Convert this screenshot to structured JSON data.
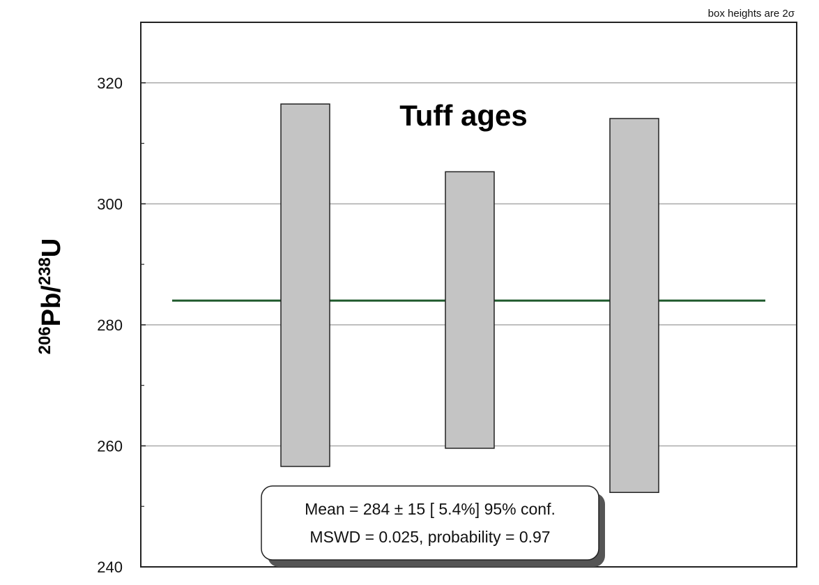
{
  "chart_data": {
    "type": "bar",
    "subtype": "weighted-mean error boxes",
    "title": "Tuff ages",
    "note": "box heights are 2σ",
    "ylabel": {
      "sup1": "206",
      "main1": "Pb/",
      "sup2": "238",
      "main2": "U"
    },
    "ylim": [
      240,
      330
    ],
    "yticks": [
      240,
      260,
      280,
      300,
      320
    ],
    "grid": true,
    "boxes": [
      {
        "low": 256.6,
        "high": 316.5
      },
      {
        "low": 259.6,
        "high": 305.3
      },
      {
        "low": 252.3,
        "high": 314.1
      }
    ],
    "mean": 284,
    "stats": {
      "line1": "Mean = 284 ± 15  [ 5.4%]  95% conf.",
      "line2": "MSWD = 0.025, probability = 0.97"
    },
    "colors": {
      "box_fill": "#c4c4c4",
      "box_stroke": "#222222",
      "mean_line": "#1f5a2c",
      "grid": "#aaaaaa",
      "frame": "#222222"
    }
  }
}
